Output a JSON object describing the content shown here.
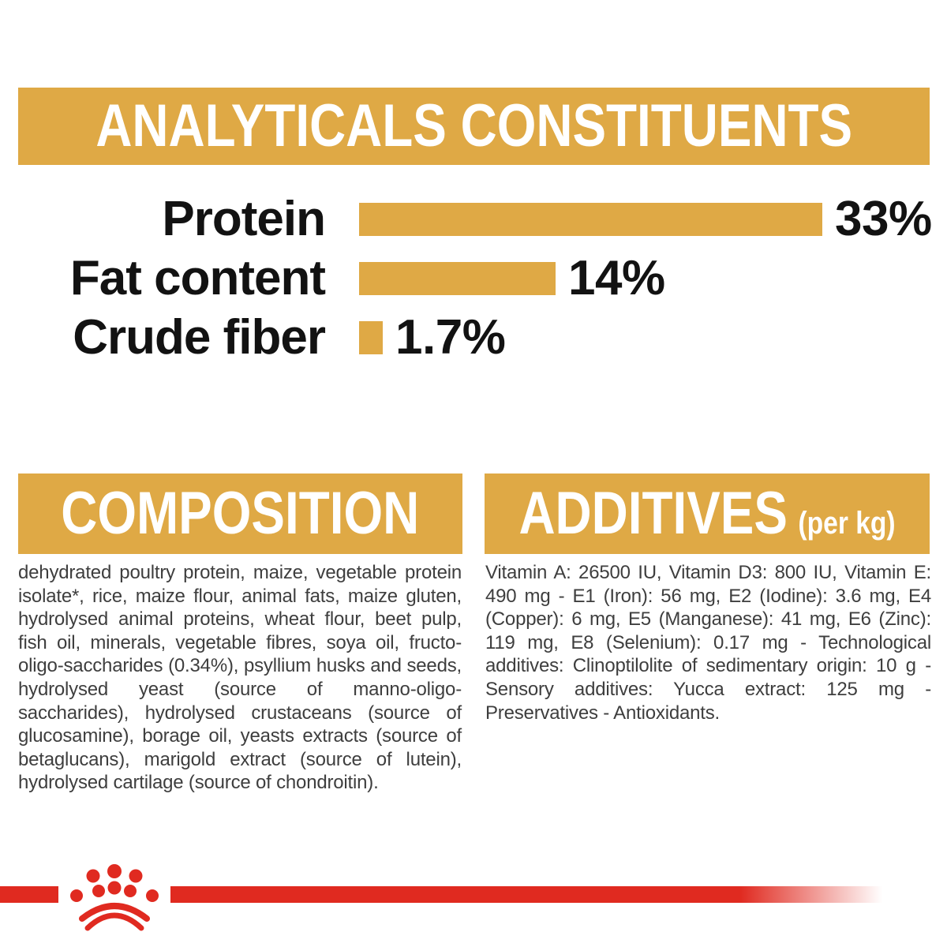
{
  "colors": {
    "gold": "#dfa945",
    "red": "#e02a20",
    "white": "#ffffff",
    "body-text": "#3e3e3e"
  },
  "analyticals": {
    "title": "ANALYTICALS CONSTITUENTS"
  },
  "chart_data": {
    "type": "bar",
    "orientation": "horizontal",
    "title": "ANALYTICALS CONSTITUENTS",
    "categories": [
      "Protein",
      "Fat content",
      "Crude fiber"
    ],
    "values": [
      33,
      14,
      1.7
    ],
    "value_labels": [
      "33%",
      "14%",
      "1.7%"
    ],
    "unit": "percent",
    "xlim": [
      0,
      33
    ],
    "bar_color": "#dfa945",
    "grid": false,
    "legend": "none",
    "value_label_position": "right-of-bar"
  },
  "composition": {
    "title": "COMPOSITION",
    "body": "dehydrated poultry protein, maize, vegetable protein isolate*, rice, maize flour, animal fats, maize gluten, hydrolysed animal proteins, wheat flour, beet pulp, fish oil, minerals, vegetable fibres, soya oil, fructo-oligo-saccharides (0.34%), psyllium husks and seeds, hydrolysed yeast (source of manno-oligo-saccharides), hydrolysed crustaceans (source of glucosamine), borage oil, yeasts extracts (source of betaglucans), marigold extract (source of lutein), hydrolysed cartilage (source of chondroitin)."
  },
  "additives": {
    "title": "ADDITIVES",
    "unit_note": "(per kg)",
    "body": "Vitamin A: 26500 IU, Vitamin D3: 800 IU, Vitamin E: 490 mg - E1 (Iron): 56 mg, E2 (Iodine): 3.6 mg, E4 (Copper): 6 mg, E5 (Manganese): 41 mg, E6 (Zinc): 119 mg, E8 (Selenium): 0.17 mg - Technological additives: Clinoptilolite of sedimentary origin: 10 g - Sensory additives: Yucca extract: 125 mg - Preservatives - Antioxidants."
  },
  "footer": {
    "logo": "royal-canin-crown",
    "line_color": "#e02a20"
  }
}
